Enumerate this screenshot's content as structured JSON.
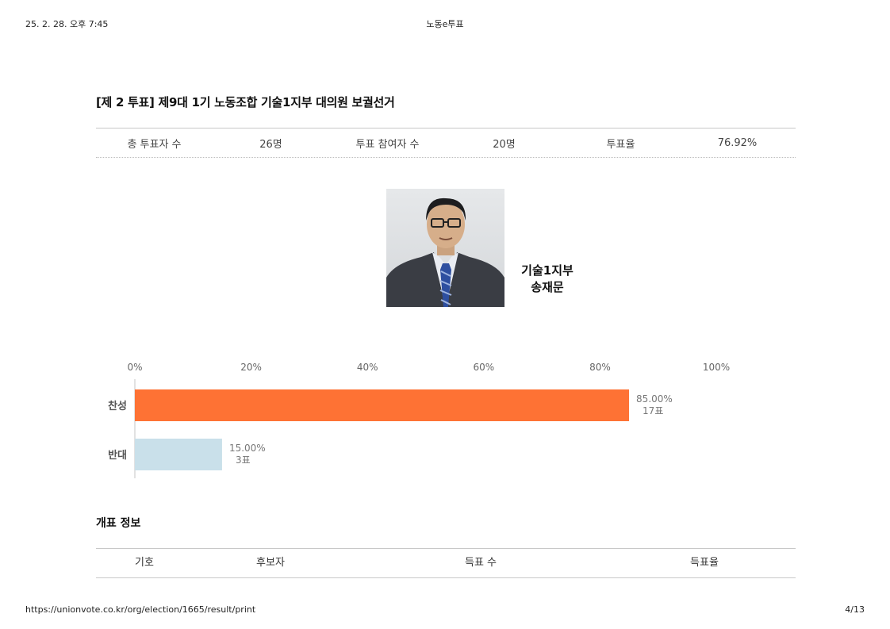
{
  "page_header": {
    "datetime": "25. 2. 28. 오후 7:45",
    "title": "노동e투표"
  },
  "page_footer": {
    "url": "https://unionvote.co.kr/org/election/1665/result/print",
    "page": "4/13"
  },
  "election": {
    "title": "[제 2 투표] 제9대 1기 노동조합 기술1지부 대의원 보궐선거"
  },
  "summary": {
    "voters_label": "총 투표자 수",
    "voters_value": "26명",
    "participants_label": "투표 참여자 수",
    "participants_value": "20명",
    "rate_label": "투표율",
    "rate_value": "76.92%"
  },
  "candidate": {
    "branch": "기술1지부",
    "name": "송재문"
  },
  "chart_data": {
    "type": "bar",
    "orientation": "horizontal",
    "categories": [
      "찬성",
      "반대"
    ],
    "values": [
      85.0,
      15.0
    ],
    "value_labels": [
      "85.00%",
      "15.00%"
    ],
    "vote_labels": [
      "17표",
      "3표"
    ],
    "colors": [
      "#fe7234",
      "#c9e0ea"
    ],
    "x_ticks": [
      "0%",
      "20%",
      "40%",
      "60%",
      "80%",
      "100%"
    ],
    "xlim": [
      0,
      100
    ],
    "grid": false
  },
  "count_info": {
    "title": "개표 정보",
    "headers": [
      "기호",
      "후보자",
      "득표 수",
      "득표율"
    ]
  }
}
